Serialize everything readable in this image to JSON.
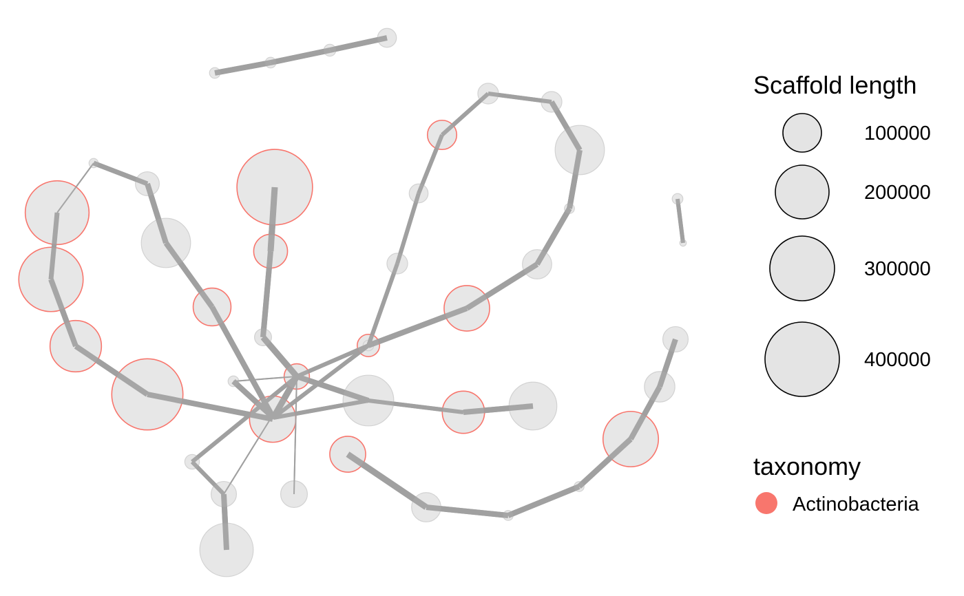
{
  "legend": {
    "size_title": "Scaffold length",
    "size_keys": [
      {
        "label": "100000",
        "value": 100000
      },
      {
        "label": "200000",
        "value": 200000
      },
      {
        "label": "300000",
        "value": 300000
      },
      {
        "label": "400000",
        "value": 400000
      }
    ],
    "color_title": "taxonomy",
    "color_keys": [
      {
        "label": "Actinobacteria",
        "color": "#F8766D"
      }
    ]
  },
  "colors": {
    "node_fill": "#E4E4E4",
    "node_stroke_default": "#D2D2D2",
    "edge": "#A0A0A0",
    "actinobacteria": "#F8766D"
  },
  "network": {
    "nodes": [
      {
        "id": "a1",
        "length": 8000
      },
      {
        "id": "a2",
        "length": 8000
      },
      {
        "id": "a3",
        "length": 10000
      },
      {
        "id": "a4",
        "length": 25000
      },
      {
        "id": "b1",
        "length": 6000
      },
      {
        "id": "b2",
        "length": 40000
      },
      {
        "id": "b3",
        "length": 285000,
        "taxonomy": "Actinobacteria"
      },
      {
        "id": "b4",
        "length": 290000,
        "taxonomy": "Actinobacteria"
      },
      {
        "id": "b5",
        "length": 185000,
        "taxonomy": "Actinobacteria"
      },
      {
        "id": "b6",
        "length": 355000,
        "taxonomy": "Actinobacteria"
      },
      {
        "id": "b7",
        "length": 150000,
        "taxonomy": "Actinobacteria"
      },
      {
        "id": "c1",
        "length": 170000
      },
      {
        "id": "c2",
        "length": 100000,
        "taxonomy": "Actinobacteria"
      },
      {
        "id": "c3",
        "length": 400000,
        "taxonomy": "Actinobacteria"
      },
      {
        "id": "c4",
        "length": 80000,
        "taxonomy": "Actinobacteria"
      },
      {
        "id": "c5",
        "length": 20000
      },
      {
        "id": "hub",
        "length": 45000,
        "taxonomy": "Actinobacteria"
      },
      {
        "id": "h2",
        "length": 8000
      },
      {
        "id": "h3",
        "length": 15000
      },
      {
        "id": "h4",
        "length": 45000
      },
      {
        "id": "h5",
        "length": 200000
      },
      {
        "id": "h6",
        "length": 50000
      },
      {
        "id": "h7",
        "length": 20000
      },
      {
        "id": "h8",
        "length": 15000
      },
      {
        "id": "m1",
        "length": 8000
      },
      {
        "id": "m2",
        "length": 180000
      },
      {
        "id": "m3",
        "length": 125000,
        "taxonomy": "Actinobacteria"
      },
      {
        "id": "m4",
        "length": 160000
      },
      {
        "id": "r1",
        "length": 30000
      },
      {
        "id": "r2",
        "length": 25000
      },
      {
        "id": "r3",
        "length": 60000,
        "taxonomy": "Actinobacteria"
      },
      {
        "id": "r4",
        "length": 30000
      },
      {
        "id": "r5",
        "length": 30000
      },
      {
        "id": "r6",
        "length": 170000
      },
      {
        "id": "r7",
        "length": 7000
      },
      {
        "id": "r8",
        "length": 60000
      },
      {
        "id": "r9",
        "length": 145000,
        "taxonomy": "Actinobacteria"
      },
      {
        "id": "r10",
        "length": 35000,
        "taxonomy": "Actinobacteria"
      },
      {
        "id": "s1",
        "length": 8000
      },
      {
        "id": "s2",
        "length": 3000
      },
      {
        "id": "t1",
        "length": 45000
      },
      {
        "id": "t2",
        "length": 65000
      },
      {
        "id": "t3",
        "length": 215000,
        "taxonomy": "Actinobacteria"
      },
      {
        "id": "t4",
        "length": 7000
      },
      {
        "id": "t5",
        "length": 7000
      },
      {
        "id": "t6",
        "length": 60000
      },
      {
        "id": "t7",
        "length": 90000,
        "taxonomy": "Actinobacteria"
      }
    ],
    "edges": [
      {
        "source": "a1",
        "target": "a2",
        "weight": 8
      },
      {
        "source": "a2",
        "target": "a3",
        "weight": 8
      },
      {
        "source": "a3",
        "target": "a4",
        "weight": 8
      },
      {
        "source": "b1",
        "target": "b2",
        "weight": 7
      },
      {
        "source": "b1",
        "target": "b3",
        "weight": 2
      },
      {
        "source": "b2",
        "target": "c1",
        "weight": 8
      },
      {
        "source": "c1",
        "target": "c2",
        "weight": 8
      },
      {
        "source": "c2",
        "target": "hub2",
        "weight": 8
      },
      {
        "source": "b3",
        "target": "b4",
        "weight": 7
      },
      {
        "source": "b4",
        "target": "b5",
        "weight": 8
      },
      {
        "source": "b5",
        "target": "b6",
        "weight": 8
      },
      {
        "source": "b6",
        "target": "b7",
        "weight": 8
      },
      {
        "source": "b7",
        "target": "hub",
        "weight": 2
      },
      {
        "source": "c3",
        "target": "c4",
        "weight": 9
      },
      {
        "source": "c4",
        "target": "c5",
        "weight": 8
      },
      {
        "source": "c5",
        "target": "hub",
        "weight": 9
      },
      {
        "source": "hub",
        "target": "hub2",
        "weight": 9
      },
      {
        "source": "hub",
        "target": "h2",
        "weight": 2
      },
      {
        "source": "h2",
        "target": "hub2",
        "weight": 8
      },
      {
        "source": "hub",
        "target": "h3",
        "weight": 6
      },
      {
        "source": "hub",
        "target": "h4",
        "weight": 2
      },
      {
        "source": "h3",
        "target": "h4",
        "weight": 6
      },
      {
        "source": "h4",
        "target": "h5",
        "weight": 8
      },
      {
        "source": "hub",
        "target": "h6",
        "weight": 2
      },
      {
        "source": "hub2",
        "target": "m1",
        "weight": 6
      },
      {
        "source": "hub",
        "target": "m2",
        "weight": 8
      },
      {
        "source": "hub2",
        "target": "m2",
        "weight": 6
      },
      {
        "source": "m2",
        "target": "m3",
        "weight": 6
      },
      {
        "source": "m3",
        "target": "m4",
        "weight": 8
      },
      {
        "source": "c5",
        "target": "h7",
        "weight": 2
      },
      {
        "source": "h7",
        "target": "hub",
        "weight": 2
      },
      {
        "source": "hub",
        "target": "m1",
        "weight": 6
      },
      {
        "source": "m1",
        "target": "r1",
        "weight": 6
      },
      {
        "source": "r1",
        "target": "r2",
        "weight": 6
      },
      {
        "source": "r2",
        "target": "r3",
        "weight": 6
      },
      {
        "source": "r3",
        "target": "r4",
        "weight": 6
      },
      {
        "source": "r4",
        "target": "r5",
        "weight": 6
      },
      {
        "source": "r5",
        "target": "r6",
        "weight": 8
      },
      {
        "source": "r6",
        "target": "r7",
        "weight": 8
      },
      {
        "source": "r7",
        "target": "r8",
        "weight": 8
      },
      {
        "source": "r8",
        "target": "r9",
        "weight": 8
      },
      {
        "source": "r9",
        "target": "r10",
        "weight": 8
      },
      {
        "source": "r10",
        "target": "m1",
        "weight": 8
      },
      {
        "source": "s1",
        "target": "s2",
        "weight": 6
      },
      {
        "source": "t1",
        "target": "t2",
        "weight": 8
      },
      {
        "source": "t2",
        "target": "t3",
        "weight": 8
      },
      {
        "source": "t3",
        "target": "t4",
        "weight": 8
      },
      {
        "source": "t4",
        "target": "t5",
        "weight": 8
      },
      {
        "source": "t5",
        "target": "t6",
        "weight": 8
      },
      {
        "source": "t6",
        "target": "t7",
        "weight": 9
      }
    ]
  }
}
